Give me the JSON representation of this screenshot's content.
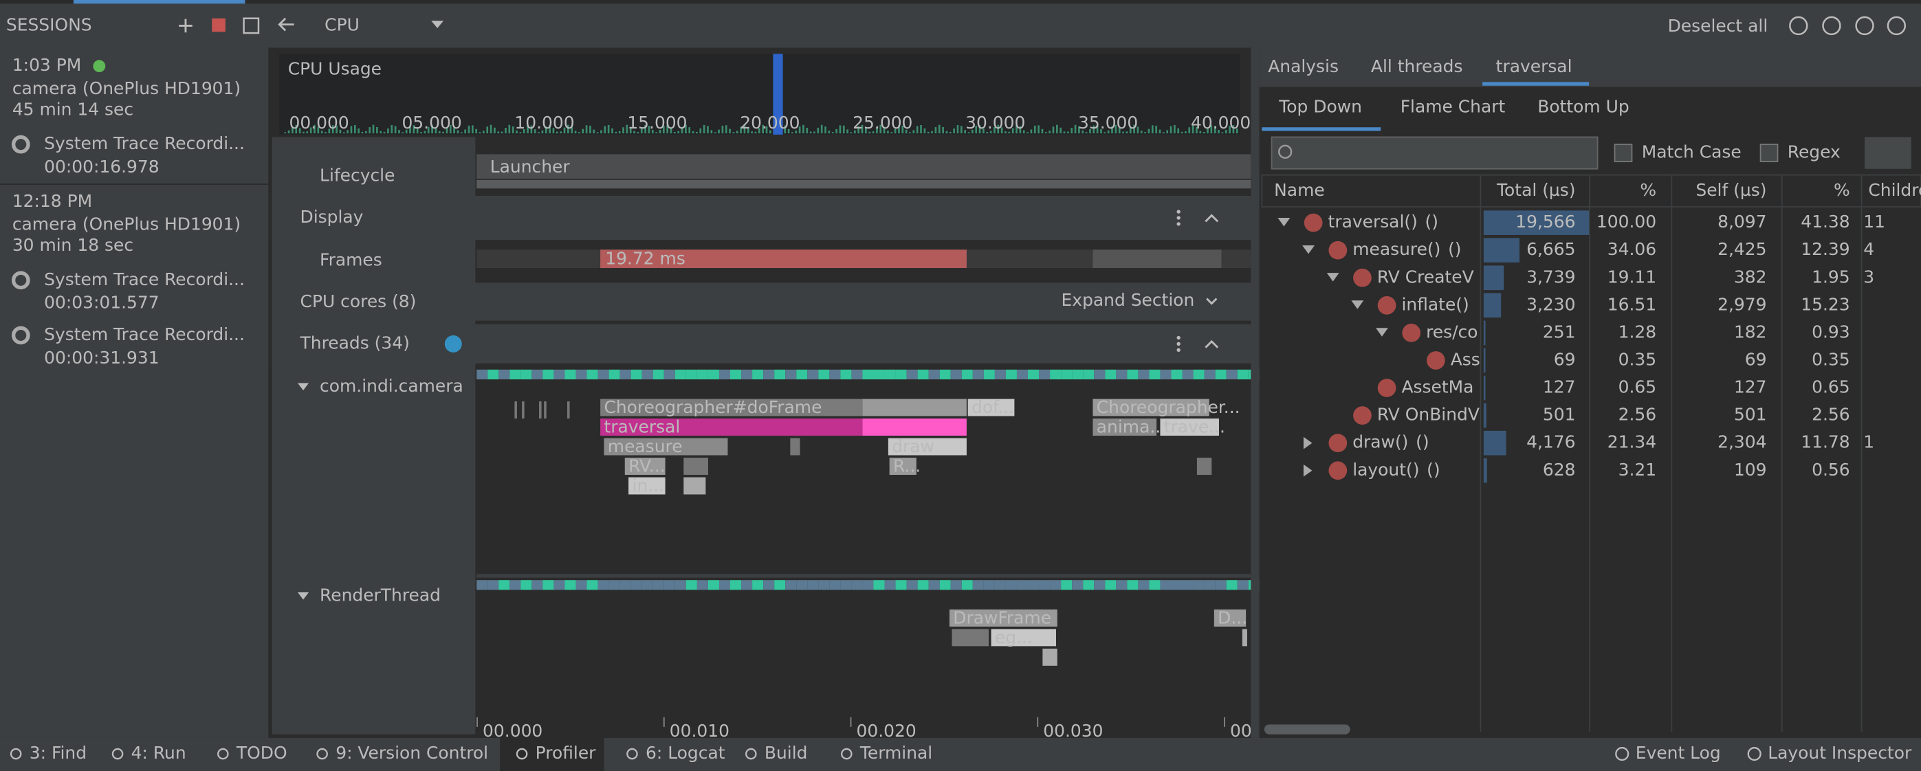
{
  "sessions": {
    "title": "SESSIONS",
    "items": [
      {
        "time": "1:03 PM",
        "device": "camera (OnePlus HD1901)",
        "duration": "45 min 14 sec",
        "recordings": [
          {
            "name": "System Trace Recordi...",
            "elapsed": "00:00:16.978"
          }
        ]
      },
      {
        "time": "12:18 PM",
        "device": "camera (OnePlus HD1901)",
        "duration": "30 min 18 sec",
        "recordings": [
          {
            "name": "System Trace Recordi...",
            "elapsed": "00:03:01.577"
          },
          {
            "name": "System Trace Recordi...",
            "elapsed": "00:00:31.931"
          }
        ]
      }
    ]
  },
  "toolbar": {
    "profiler": "CPU",
    "deselect": "Deselect all"
  },
  "cpu_usage": {
    "label": "CPU Usage",
    "ticks": [
      "00.000",
      "05.000",
      "10.000",
      "15.000",
      "20.000",
      "25.000",
      "30.000",
      "35.000",
      "40.000"
    ]
  },
  "tracks": {
    "lifecycle": {
      "label": "Lifecycle",
      "value": "Launcher"
    },
    "display": {
      "title": "Display",
      "frames": "Frames",
      "frame_time": "19.72 ms"
    },
    "cpu_cores": {
      "title": "CPU cores (8)",
      "action": "Expand Section"
    },
    "threads": {
      "title": "Threads (34)",
      "items": [
        {
          "name": "com.indi.camera",
          "slices": [
            "Choreographer#doFrame",
            "dof...",
            "Choreographer...",
            "traversal",
            "anima...",
            "trave...",
            "measure",
            "draw",
            "RV...",
            "R...",
            "in..."
          ]
        },
        {
          "name": "RenderThread",
          "slices": [
            "DrawFrame",
            "eg...",
            "D..."
          ]
        }
      ]
    },
    "time_ticks": [
      "00.000",
      "00.010",
      "00.020",
      "00.030",
      "00."
    ]
  },
  "analysis": {
    "tabs": [
      "Analysis",
      "All threads",
      "traversal"
    ],
    "views": [
      "Top Down",
      "Flame Chart",
      "Bottom Up"
    ],
    "match_case": "Match Case",
    "regex": "Regex",
    "columns": [
      "Name",
      "Total (µs)",
      "%",
      "Self (µs)",
      "%",
      "Childre"
    ],
    "rows": [
      {
        "name": "traversal()",
        "args": "()",
        "total": "19,566",
        "total_pct": "100.00",
        "self": "8,097",
        "self_pct": "41.38",
        "children": "11"
      },
      {
        "name": "measure()",
        "args": "()",
        "total": "6,665",
        "total_pct": "34.06",
        "self": "2,425",
        "self_pct": "12.39",
        "children": "4"
      },
      {
        "name": "RV CreateV",
        "total": "3,739",
        "total_pct": "19.11",
        "self": "382",
        "self_pct": "1.95",
        "children": "3"
      },
      {
        "name": "inflate()",
        "total": "3,230",
        "total_pct": "16.51",
        "self": "2,979",
        "self_pct": "15.23"
      },
      {
        "name": "res/co",
        "total": "251",
        "total_pct": "1.28",
        "self": "182",
        "self_pct": "0.93"
      },
      {
        "name": "Ass",
        "total": "69",
        "total_pct": "0.35",
        "self": "69",
        "self_pct": "0.35"
      },
      {
        "name": "AssetMa",
        "total": "127",
        "total_pct": "0.65",
        "self": "127",
        "self_pct": "0.65"
      },
      {
        "name": "RV OnBindV",
        "total": "501",
        "total_pct": "2.56",
        "self": "501",
        "self_pct": "2.56"
      },
      {
        "name": "draw()",
        "args": "()",
        "total": "4,176",
        "total_pct": "21.34",
        "self": "2,304",
        "self_pct": "11.78",
        "children": "1"
      },
      {
        "name": "layout()",
        "args": "()",
        "total": "628",
        "total_pct": "3.21",
        "self": "109",
        "self_pct": "0.56"
      }
    ]
  },
  "status_bar": {
    "left": [
      "3: Find",
      "4: Run",
      "TODO",
      "9: Version Control",
      "Profiler",
      "6: Logcat",
      "Build",
      "Terminal"
    ],
    "right": [
      "Event Log",
      "Layout Inspector"
    ]
  }
}
